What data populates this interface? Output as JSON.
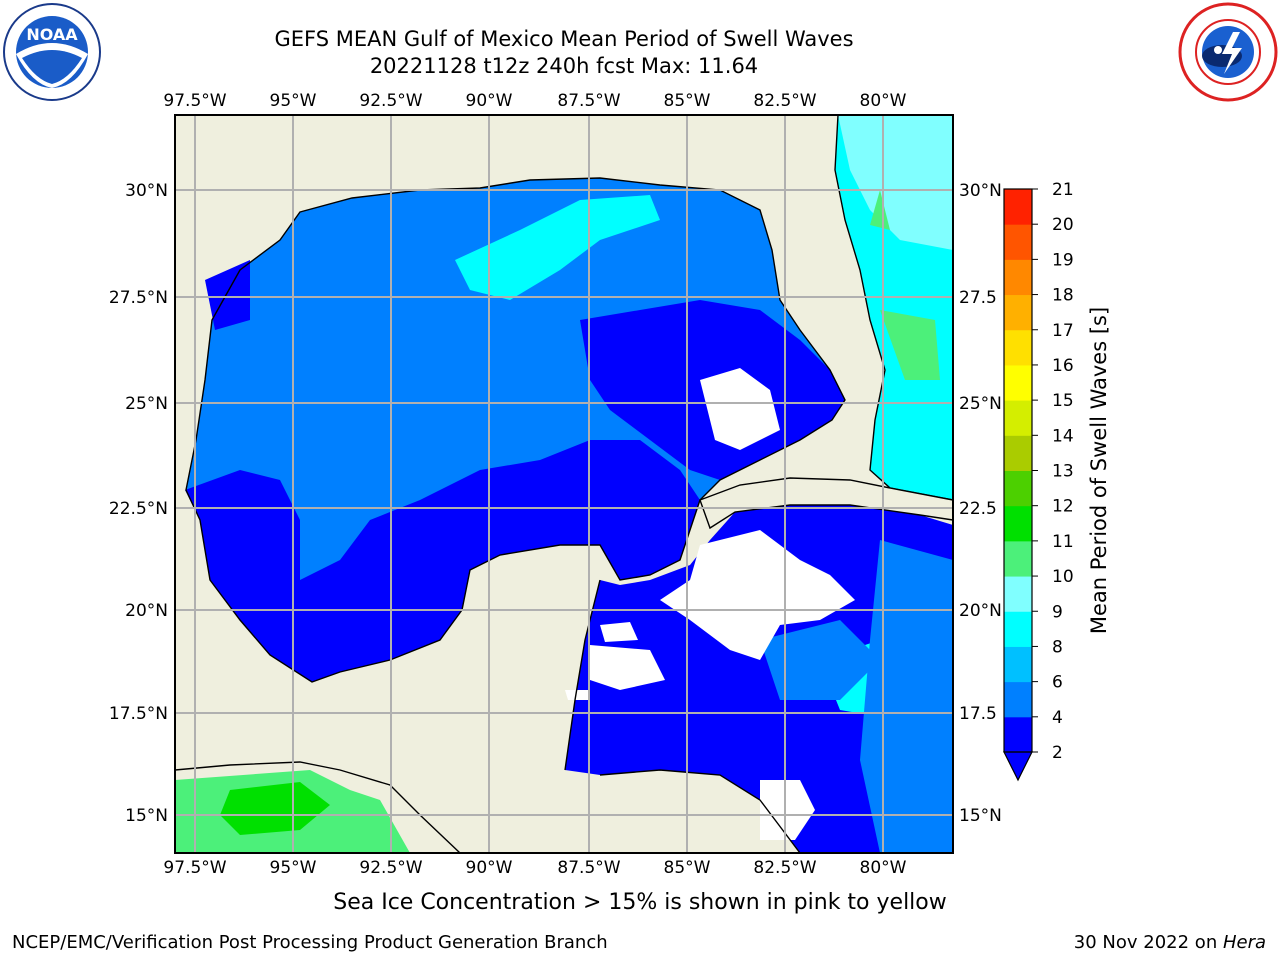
{
  "header": {
    "title_line1": "GEFS MEAN Gulf of Mexico Mean Period of Swell Waves",
    "title_line2": "20221128 t12z 240h fcst   Max: 11.64"
  },
  "logos": {
    "left": "NOAA",
    "right": "NATIONAL WEATHER SERVICE"
  },
  "map": {
    "lon_ticks": [
      "97.5°W",
      "95°W",
      "92.5°W",
      "90°W",
      "87.5°W",
      "85°W",
      "82.5°W",
      "80°W"
    ],
    "lat_ticks_left": [
      "30°N",
      "27.5°N",
      "25°N",
      "22.5°N",
      "20°N",
      "17.5°N",
      "15°N"
    ],
    "lat_ticks_right": [
      "30°N",
      "27.5",
      "25°N",
      "22.5",
      "20°N",
      "17.5",
      "15°N"
    ],
    "colors": {
      "land": "#efefde",
      "ocean_2_4": "#0000ff",
      "ocean_4_6": "#0080ff",
      "band_6_8": "#00ffff",
      "band_8_9": "#80ffff",
      "band_9_10": "#4cf07a",
      "band_10_11": "#00e000",
      "undefined": "#ffffff"
    }
  },
  "colorbar": {
    "label": "Mean Period of Swell Waves [s]",
    "ticks": [
      "2",
      "4",
      "6",
      "8",
      "9",
      "10",
      "11",
      "12",
      "13",
      "14",
      "15",
      "16",
      "17",
      "18",
      "19",
      "20",
      "21"
    ],
    "colors": [
      "#0000ff",
      "#0080ff",
      "#00c0ff",
      "#00ffff",
      "#80ffff",
      "#4cf07a",
      "#00e000",
      "#4cd000",
      "#aacc00",
      "#d4ee00",
      "#ffff00",
      "#ffe000",
      "#ffb000",
      "#ff8800",
      "#ff5500",
      "#ff2200",
      "#ff0000"
    ]
  },
  "notes": {
    "ice": "Sea Ice Concentration > 15% is shown in pink to yellow",
    "footer_left": "NCEP/EMC/Verification Post Processing Product Generation Branch",
    "footer_date": "30 Nov 2022 on ",
    "footer_host": "Hera"
  }
}
